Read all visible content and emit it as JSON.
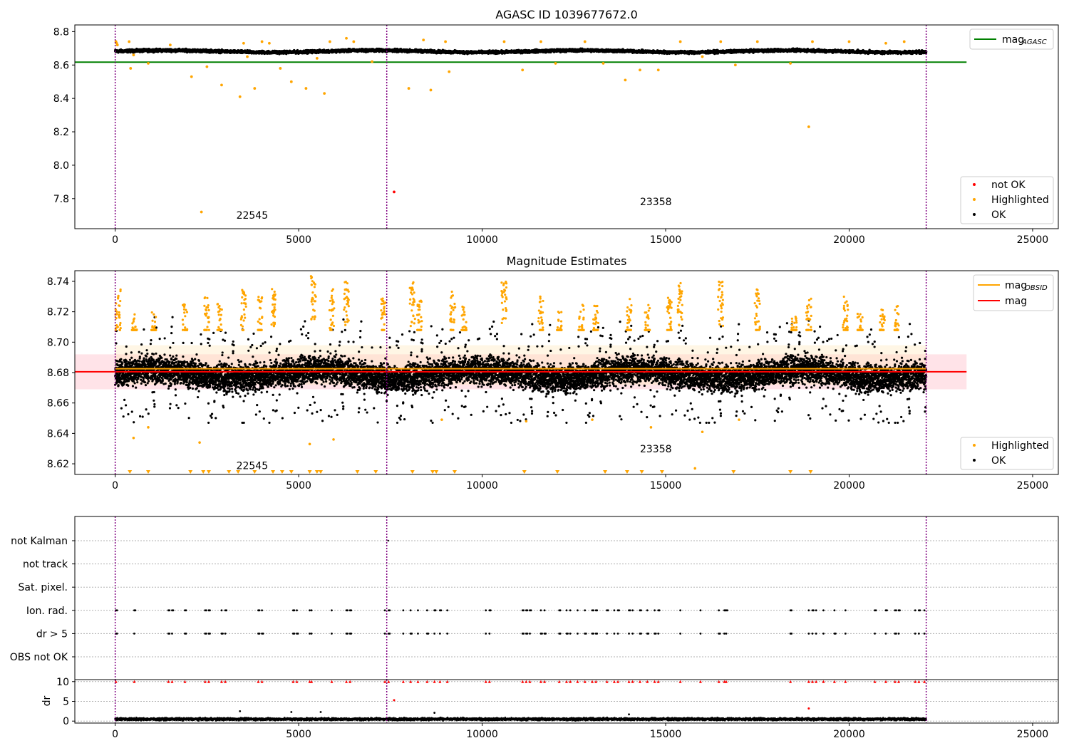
{
  "colors": {
    "ok": "#000000",
    "highlighted": "#ffa500",
    "not_ok": "#ff0000",
    "mag_agasc": "#008000",
    "mag_line": "#ff0000",
    "mag_obsid": "#ffa500",
    "obs_boundary": "#800080",
    "band_fill": "#ffc0cb"
  },
  "chart_data": [
    {
      "type": "scatter",
      "title": "AGASC ID 1039677672.0",
      "x": {
        "lim": [
          -1100,
          25700
        ],
        "ticks": [
          0,
          5000,
          10000,
          15000,
          20000,
          25000
        ],
        "tick_labels": [
          "0",
          "5000",
          "10000",
          "15000",
          "20000",
          "25000"
        ]
      },
      "y": {
        "lim": [
          7.62,
          8.84
        ],
        "ticks": [
          7.8,
          8.0,
          8.2,
          8.4,
          8.6,
          8.8
        ],
        "tick_labels": [
          "7.8",
          "8.0",
          "8.2",
          "8.4",
          "8.6",
          "8.8"
        ]
      },
      "ok_band": {
        "x_range": [
          0,
          22100
        ],
        "center": 8.682,
        "spread": 0.012
      },
      "series": [
        {
          "name": "not OK",
          "color": "#ff0000",
          "points": [
            [
              7600,
              7.84
            ]
          ]
        },
        {
          "name": "Highlighted",
          "color": "#ffa500",
          "points": [
            [
              20,
              8.74
            ],
            [
              40,
              8.73
            ],
            [
              60,
              8.72
            ],
            [
              380,
              8.74
            ],
            [
              420,
              8.58
            ],
            [
              500,
              8.66
            ],
            [
              900,
              8.61
            ],
            [
              1500,
              8.72
            ],
            [
              2080,
              8.53
            ],
            [
              2350,
              7.72
            ],
            [
              2500,
              8.59
            ],
            [
              2900,
              8.48
            ],
            [
              3400,
              8.41
            ],
            [
              3500,
              8.73
            ],
            [
              3600,
              8.65
            ],
            [
              3800,
              8.46
            ],
            [
              4000,
              8.74
            ],
            [
              4200,
              8.73
            ],
            [
              4500,
              8.58
            ],
            [
              4800,
              8.5
            ],
            [
              5200,
              8.46
            ],
            [
              5500,
              8.64
            ],
            [
              5700,
              8.43
            ],
            [
              5850,
              8.74
            ],
            [
              6300,
              8.76
            ],
            [
              6500,
              8.74
            ],
            [
              7000,
              8.62
            ],
            [
              8000,
              8.46
            ],
            [
              8400,
              8.75
            ],
            [
              8600,
              8.45
            ],
            [
              9000,
              8.74
            ],
            [
              9100,
              8.56
            ],
            [
              10600,
              8.74
            ],
            [
              11100,
              8.57
            ],
            [
              11600,
              8.74
            ],
            [
              12000,
              8.61
            ],
            [
              12800,
              8.74
            ],
            [
              13300,
              8.61
            ],
            [
              13900,
              8.51
            ],
            [
              14300,
              8.57
            ],
            [
              14800,
              8.57
            ],
            [
              15400,
              8.74
            ],
            [
              16000,
              8.65
            ],
            [
              16500,
              8.74
            ],
            [
              16900,
              8.6
            ],
            [
              17500,
              8.74
            ],
            [
              18400,
              8.61
            ],
            [
              18900,
              8.23
            ],
            [
              19000,
              8.74
            ],
            [
              20000,
              8.74
            ],
            [
              21000,
              8.73
            ],
            [
              21500,
              8.74
            ]
          ]
        },
        {
          "name": "OK",
          "color": "#000000",
          "generated": "ok_band"
        }
      ],
      "lines": [
        {
          "name": "mag_AGASC",
          "color": "#008000",
          "y": 8.617,
          "x_range": [
            -1100,
            23200
          ]
        }
      ],
      "vlines": [
        0,
        7400,
        22100
      ],
      "annotations": [
        {
          "text": "22545",
          "x": 3300,
          "y": 7.68
        },
        {
          "text": "23358",
          "x": 14300,
          "y": 7.76
        }
      ],
      "legends": [
        {
          "position": "top-right",
          "entries": [
            {
              "label": "mag",
              "sub": "AGASC",
              "kind": "line",
              "color": "#008000"
            }
          ]
        },
        {
          "position": "bottom-right",
          "entries": [
            {
              "label": "not OK",
              "kind": "dot",
              "color": "#ff0000"
            },
            {
              "label": "Highlighted",
              "kind": "dot",
              "color": "#ffa500"
            },
            {
              "label": "OK",
              "kind": "dot",
              "color": "#000000"
            }
          ]
        }
      ]
    },
    {
      "type": "scatter",
      "title": "Magnitude Estimates",
      "x": {
        "lim": [
          -1100,
          25700
        ],
        "ticks": [
          0,
          5000,
          10000,
          15000,
          20000,
          25000
        ],
        "tick_labels": [
          "0",
          "5000",
          "10000",
          "15000",
          "20000",
          "25000"
        ]
      },
      "y": {
        "lim": [
          8.613,
          8.747
        ],
        "ticks": [
          8.62,
          8.64,
          8.66,
          8.68,
          8.7,
          8.72,
          8.74
        ],
        "tick_labels": [
          "8.62",
          "8.64",
          "8.66",
          "8.68",
          "8.70",
          "8.72",
          "8.74"
        ]
      },
      "bands": [
        {
          "y_range": [
            8.669,
            8.692
          ],
          "x_range": [
            -1100,
            23200
          ],
          "color": "#ffc0cb",
          "opacity": 0.45
        },
        {
          "y_range": [
            8.672,
            8.698
          ],
          "x_range": [
            0,
            22100
          ],
          "color": "#ffe4b5",
          "opacity": 0.35
        }
      ],
      "ok_band": {
        "x_range": [
          0,
          22100
        ],
        "center": 8.679,
        "spread": 0.011
      },
      "highlight_clusters": [
        [
          80,
          8.735
        ],
        [
          520,
          8.72
        ],
        [
          1050,
          8.72
        ],
        [
          1900,
          8.725
        ],
        [
          2500,
          8.73
        ],
        [
          2850,
          8.73
        ],
        [
          3500,
          8.735
        ],
        [
          3950,
          8.73
        ],
        [
          4300,
          8.735
        ],
        [
          5400,
          8.745
        ],
        [
          5900,
          8.735
        ],
        [
          6300,
          8.74
        ],
        [
          7300,
          8.73
        ],
        [
          8100,
          8.74
        ],
        [
          8300,
          8.73
        ],
        [
          9200,
          8.735
        ],
        [
          9500,
          8.725
        ],
        [
          10600,
          8.74
        ],
        [
          11600,
          8.73
        ],
        [
          12100,
          8.72
        ],
        [
          12700,
          8.725
        ],
        [
          13100,
          8.725
        ],
        [
          14000,
          8.73
        ],
        [
          14500,
          8.725
        ],
        [
          15100,
          8.73
        ],
        [
          15400,
          8.74
        ],
        [
          16500,
          8.74
        ],
        [
          17500,
          8.735
        ],
        [
          18500,
          8.72
        ],
        [
          18900,
          8.73
        ],
        [
          19900,
          8.73
        ],
        [
          20300,
          8.72
        ],
        [
          20900,
          8.725
        ],
        [
          21300,
          8.725
        ]
      ],
      "highlight_singles": [
        [
          500,
          8.637
        ],
        [
          900,
          8.644
        ],
        [
          2300,
          8.634
        ],
        [
          5300,
          8.633
        ],
        [
          5950,
          8.636
        ],
        [
          8900,
          8.649
        ],
        [
          11200,
          8.648
        ],
        [
          13000,
          8.649
        ],
        [
          14600,
          8.644
        ],
        [
          16000,
          8.641
        ],
        [
          17000,
          8.649
        ],
        [
          15800,
          8.617
        ]
      ],
      "markers_below": [
        400,
        900,
        2050,
        2400,
        2550,
        3100,
        3350,
        3800,
        4300,
        4550,
        4800,
        5300,
        5500,
        5600,
        6600,
        7100,
        8100,
        8650,
        8750,
        9250,
        11150,
        12050,
        13350,
        13950,
        14350,
        14900,
        16850,
        18400,
        18950
      ],
      "lines": [
        {
          "name": "mag_OBSID",
          "color": "#ffa500",
          "y": 8.6825,
          "x_range": [
            0,
            22100
          ]
        },
        {
          "name": "mag",
          "color": "#ff0000",
          "y": 8.6805,
          "x_range": [
            -1100,
            23200
          ]
        }
      ],
      "vlines": [
        0,
        7400,
        22100
      ],
      "annotations": [
        {
          "text": "22545",
          "x": 3300,
          "y": 8.6165
        },
        {
          "text": "23358",
          "x": 14300,
          "y": 8.6275
        }
      ],
      "legends": [
        {
          "position": "top-right",
          "entries": [
            {
              "label": "mag",
              "sub": "OBSID",
              "kind": "line",
              "color": "#ffa500"
            },
            {
              "label": "mag",
              "kind": "line",
              "color": "#ff0000"
            }
          ]
        },
        {
          "position": "bottom-right",
          "entries": [
            {
              "label": "Highlighted",
              "kind": "dot",
              "color": "#ffa500"
            },
            {
              "label": "OK",
              "kind": "dot",
              "color": "#000000"
            }
          ]
        }
      ]
    },
    {
      "type": "scatter",
      "title": "",
      "x": {
        "lim": [
          -1100,
          25700
        ]
      },
      "categories": [
        "not Kalman",
        "not track",
        "Sat. pixel.",
        "Ion. rad.",
        "dr > 5",
        "OBS not OK"
      ],
      "flag_events": [
        20,
        520,
        1450,
        1550,
        1900,
        2450,
        2550,
        2900,
        3000,
        3900,
        4000,
        4850,
        4950,
        5300,
        5350,
        5900,
        6300,
        6400,
        7350,
        7450,
        7850,
        8050,
        8250,
        8500,
        8700,
        8850,
        9050,
        10100,
        10200,
        11100,
        11200,
        11300,
        11600,
        11700,
        12100,
        12300,
        12400,
        12600,
        12800,
        13000,
        13100,
        13400,
        13600,
        13700,
        14000,
        14100,
        14300,
        14500,
        14700,
        14800,
        15400,
        15950,
        16450,
        16600,
        16650,
        18400,
        18900,
        19000,
        19100,
        19300,
        19600,
        19900,
        20700,
        21000,
        21250,
        21350,
        21800,
        21900,
        22050
      ],
      "not_kalman_events": [
        7440
      ],
      "vlines": [
        0,
        7400,
        22100
      ],
      "dr": {
        "ylabel": "dr",
        "ylim": [
          -0.5,
          10.5
        ],
        "ticks": [
          0,
          5,
          10
        ],
        "tick_labels": [
          "0",
          "5",
          "10"
        ],
        "x_ticks": [
          0,
          5000,
          10000,
          15000,
          20000,
          25000
        ],
        "x_tick_labels": [
          "0",
          "5000",
          "10000",
          "15000",
          "20000",
          "25000"
        ],
        "band": {
          "x_range": [
            0,
            22100
          ],
          "center": 0.5,
          "spread": 0.35
        },
        "clipped_value": 10,
        "outliers_ok": [
          [
            3400,
            2.5
          ],
          [
            4800,
            2.3
          ],
          [
            5600,
            2.3
          ],
          [
            8700,
            2.1
          ],
          [
            14000,
            1.7
          ]
        ],
        "outliers_not_ok": [
          [
            7600,
            5.3
          ],
          [
            18900,
            3.2
          ]
        ]
      }
    }
  ]
}
